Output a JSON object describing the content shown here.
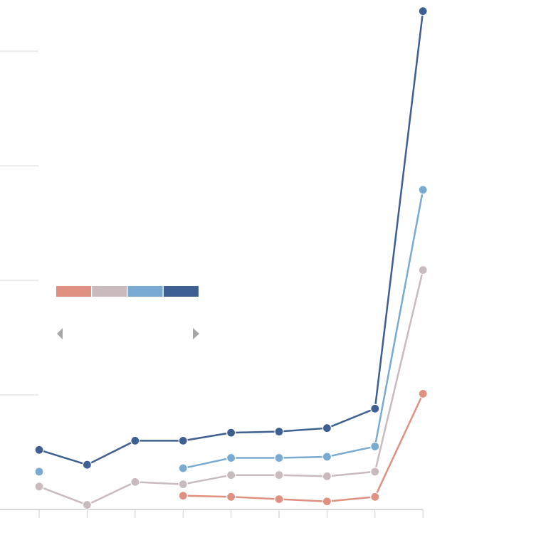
{
  "chart_data": {
    "type": "line",
    "title": "",
    "xlabel": "",
    "ylabel": "",
    "x": [
      0,
      1,
      2,
      3,
      4,
      5,
      6,
      7,
      8
    ],
    "ylim": [
      0,
      4.4
    ],
    "grid": true,
    "legend_placement": "left-middle",
    "series": [
      {
        "color": "#e09080",
        "values": [
          null,
          null,
          null,
          0.12,
          0.11,
          0.09,
          0.07,
          0.11,
          1.01
        ]
      },
      {
        "color": "#c9babe",
        "values": [
          0.2,
          0.04,
          0.24,
          0.22,
          0.3,
          0.3,
          0.29,
          0.33,
          2.09
        ]
      },
      {
        "color": "#78aad2",
        "values": [
          0.33,
          null,
          null,
          0.36,
          0.45,
          0.45,
          0.46,
          0.55,
          2.79
        ]
      },
      {
        "color": "#3d5f92",
        "values": [
          0.52,
          0.39,
          0.6,
          0.6,
          0.67,
          0.68,
          0.71,
          0.88,
          4.35
        ]
      }
    ],
    "gridlines": [
      1,
      2,
      3,
      4
    ]
  },
  "legend": {
    "prev_icon": "triangle-left-icon",
    "next_icon": "triangle-right-icon"
  }
}
